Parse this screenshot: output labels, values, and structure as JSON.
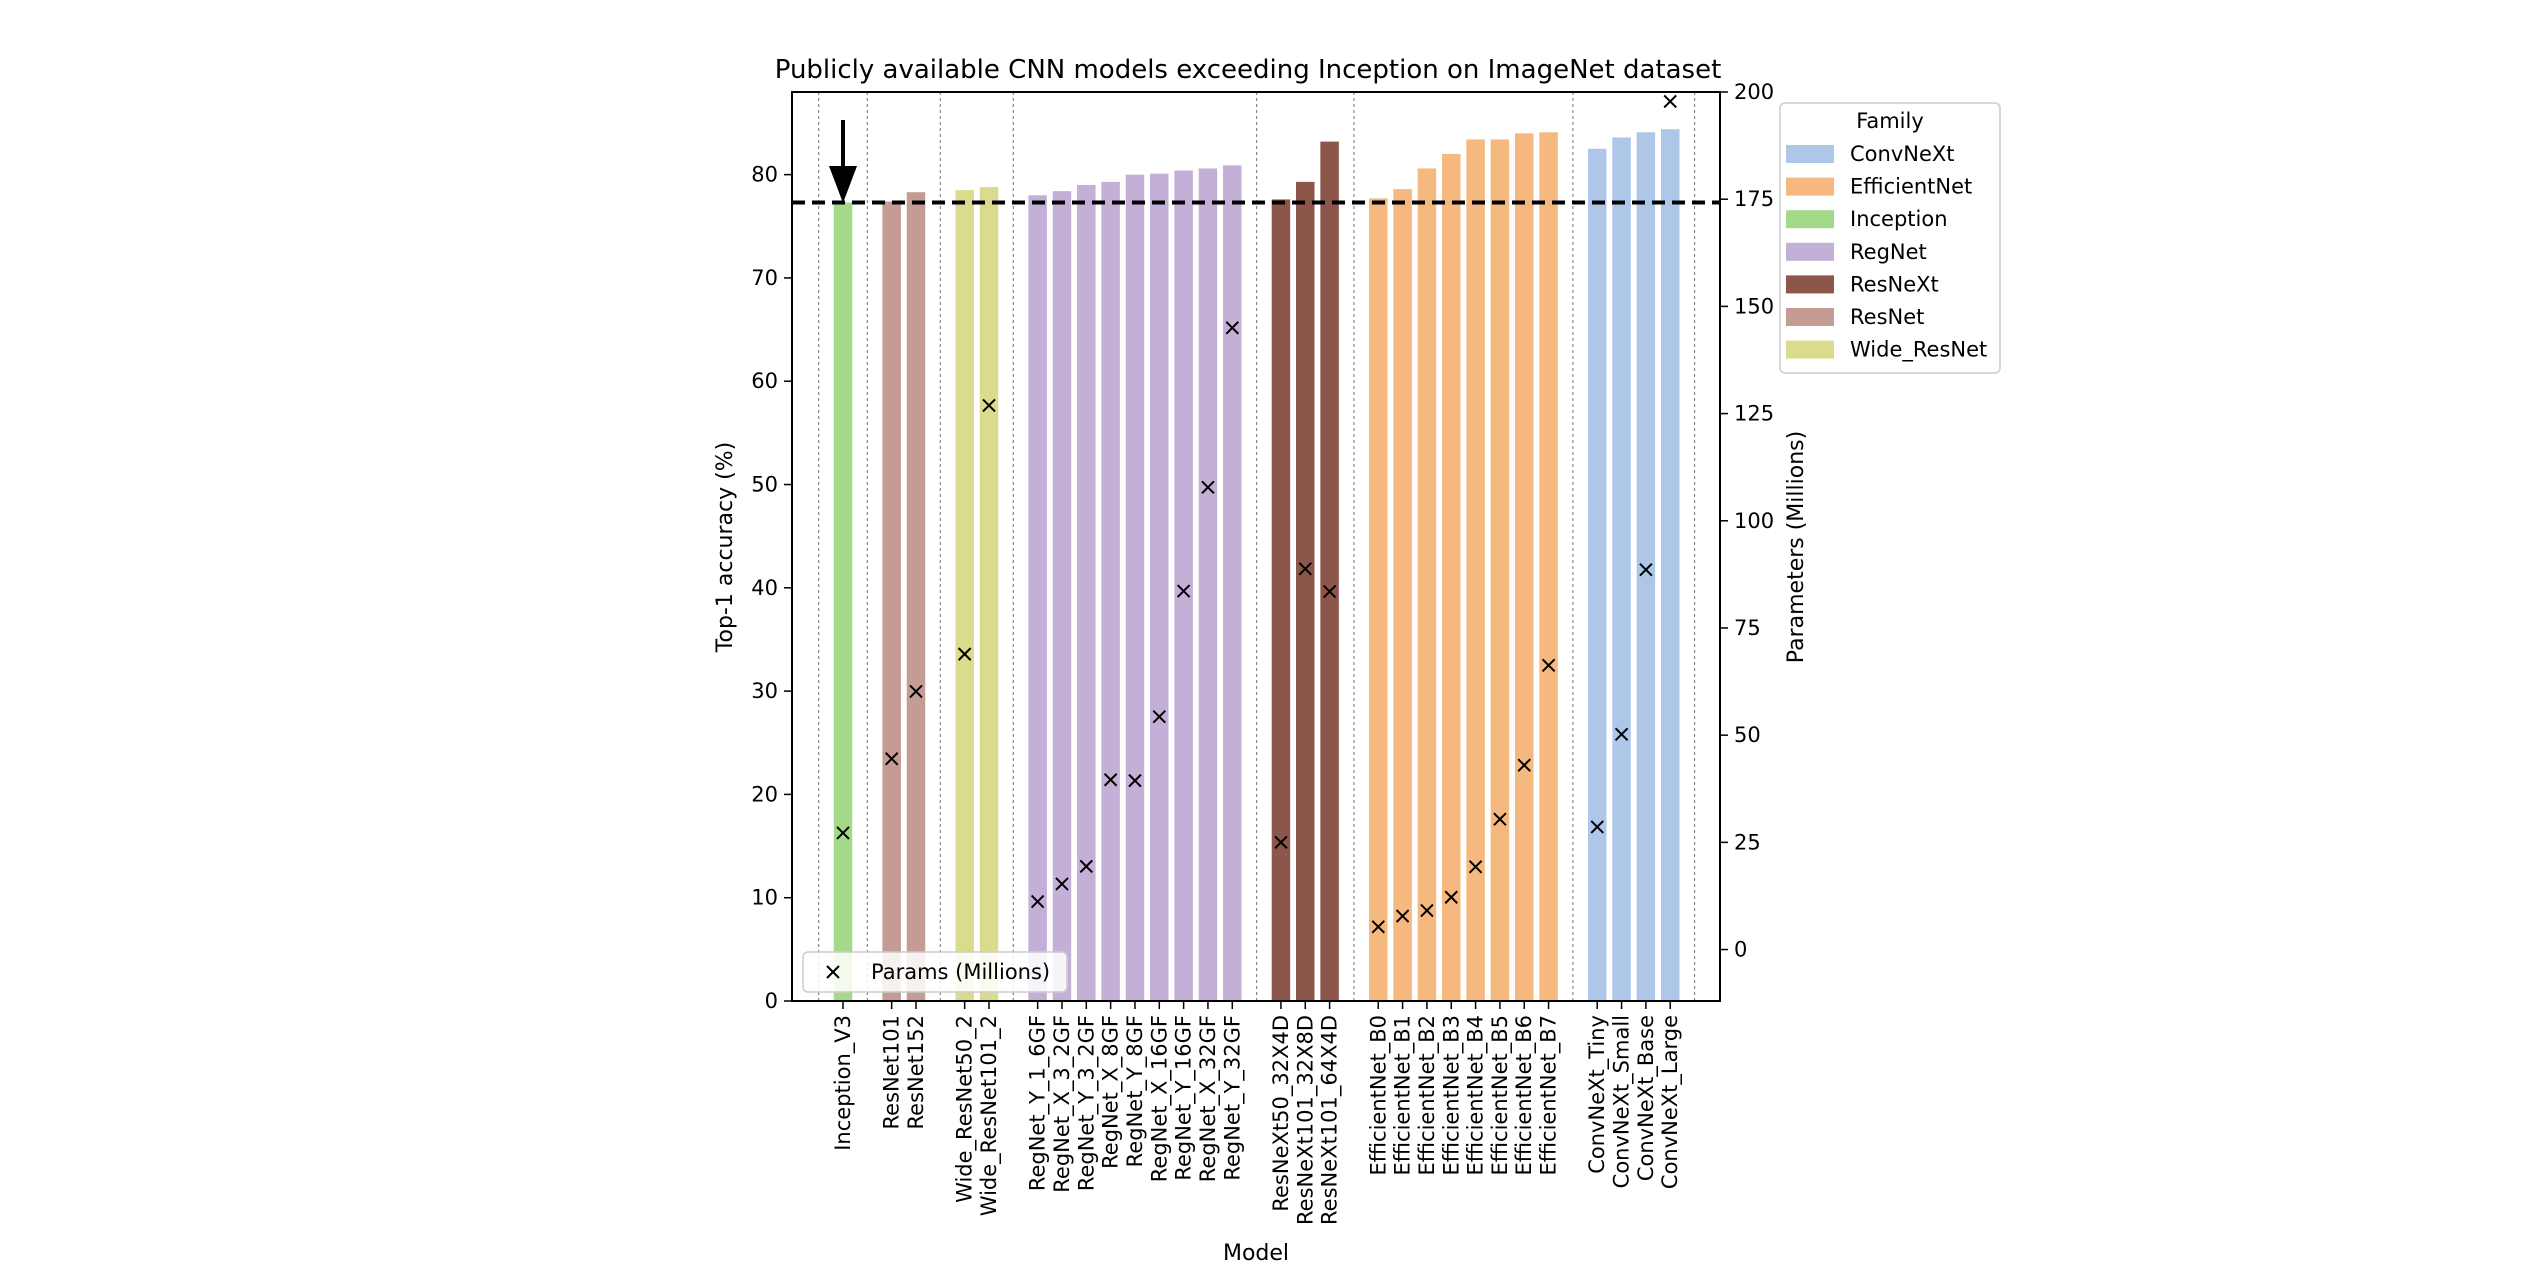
{
  "chart_data": {
    "type": "bar",
    "title": "Publicly available CNN models exceeding Inception on ImageNet dataset",
    "xlabel": "Model",
    "ylabel": "Top-1 accuracy (%)",
    "y2label": "Parameters (Millions)",
    "ylim": [
      0,
      88
    ],
    "y2lim": [
      -12,
      200
    ],
    "yticks": [
      "0",
      "10",
      "20",
      "30",
      "40",
      "50",
      "60",
      "70",
      "80"
    ],
    "y2ticks": [
      "0",
      "25",
      "50",
      "75",
      "100",
      "125",
      "150",
      "175",
      "200"
    ],
    "reference_line": {
      "value": 77.3,
      "style": "dashed"
    },
    "reference_arrow": {
      "category": "Inception_V3"
    },
    "legend_title": "Family",
    "legend_placement": "outside-right-top",
    "families": [
      {
        "name": "ConvNeXt",
        "color": "#aec7e8"
      },
      {
        "name": "EfficientNet",
        "color": "#f5b97f"
      },
      {
        "name": "Inception",
        "color": "#a5d98a"
      },
      {
        "name": "RegNet",
        "color": "#c4b0d6"
      },
      {
        "name": "ResNeXt",
        "color": "#8c564b"
      },
      {
        "name": "ResNet",
        "color": "#c49c94"
      },
      {
        "name": "Wide_ResNet",
        "color": "#dbdb8d"
      }
    ],
    "params_legend_label": "Params (Millions)",
    "params_legend_placement": "lower-left",
    "groups": [
      {
        "family": "Inception",
        "bars": [
          {
            "name": "Inception_V3",
            "acc": 77.3,
            "params": 27.2
          }
        ]
      },
      {
        "family": "ResNet",
        "bars": [
          {
            "name": "ResNet101",
            "acc": 77.4,
            "params": 44.5
          },
          {
            "name": "ResNet152",
            "acc": 78.3,
            "params": 60.2
          }
        ]
      },
      {
        "family": "Wide_ResNet",
        "bars": [
          {
            "name": "Wide_ResNet50_2",
            "acc": 78.5,
            "params": 68.9
          },
          {
            "name": "Wide_ResNet101_2",
            "acc": 78.8,
            "params": 126.9
          }
        ]
      },
      {
        "family": "RegNet",
        "bars": [
          {
            "name": "RegNet_Y_1_6GF",
            "acc": 78.0,
            "params": 11.2
          },
          {
            "name": "RegNet_X_3_2GF",
            "acc": 78.4,
            "params": 15.3
          },
          {
            "name": "RegNet_Y_3_2GF",
            "acc": 79.0,
            "params": 19.4
          },
          {
            "name": "RegNet_X_8GF",
            "acc": 79.3,
            "params": 39.6
          },
          {
            "name": "RegNet_Y_8GF",
            "acc": 80.0,
            "params": 39.4
          },
          {
            "name": "RegNet_X_16GF",
            "acc": 80.1,
            "params": 54.3
          },
          {
            "name": "RegNet_Y_16GF",
            "acc": 80.4,
            "params": 83.6
          },
          {
            "name": "RegNet_X_32GF",
            "acc": 80.6,
            "params": 107.8
          },
          {
            "name": "RegNet_Y_32GF",
            "acc": 80.9,
            "params": 145.0
          }
        ]
      },
      {
        "family": "ResNeXt",
        "bars": [
          {
            "name": "ResNeXt50_32X4D",
            "acc": 77.6,
            "params": 25.0
          },
          {
            "name": "ResNeXt101_32X8D",
            "acc": 79.3,
            "params": 88.8
          },
          {
            "name": "ResNeXt101_64X4D",
            "acc": 83.2,
            "params": 83.5
          }
        ]
      },
      {
        "family": "EfficientNet",
        "bars": [
          {
            "name": "EfficientNet_B0",
            "acc": 77.7,
            "params": 5.3
          },
          {
            "name": "EfficientNet_B1",
            "acc": 78.6,
            "params": 7.8
          },
          {
            "name": "EfficientNet_B2",
            "acc": 80.6,
            "params": 9.1
          },
          {
            "name": "EfficientNet_B3",
            "acc": 82.0,
            "params": 12.2
          },
          {
            "name": "EfficientNet_B4",
            "acc": 83.4,
            "params": 19.3
          },
          {
            "name": "EfficientNet_B5",
            "acc": 83.4,
            "params": 30.4
          },
          {
            "name": "EfficientNet_B6",
            "acc": 84.0,
            "params": 43.0
          },
          {
            "name": "EfficientNet_B7",
            "acc": 84.1,
            "params": 66.3
          }
        ]
      },
      {
        "family": "ConvNeXt",
        "bars": [
          {
            "name": "ConvNeXt_Tiny",
            "acc": 82.5,
            "params": 28.6
          },
          {
            "name": "ConvNeXt_Small",
            "acc": 83.6,
            "params": 50.2
          },
          {
            "name": "ConvNeXt_Base",
            "acc": 84.1,
            "params": 88.6
          },
          {
            "name": "ConvNeXt_Large",
            "acc": 84.4,
            "params": 197.8
          }
        ]
      }
    ]
  }
}
